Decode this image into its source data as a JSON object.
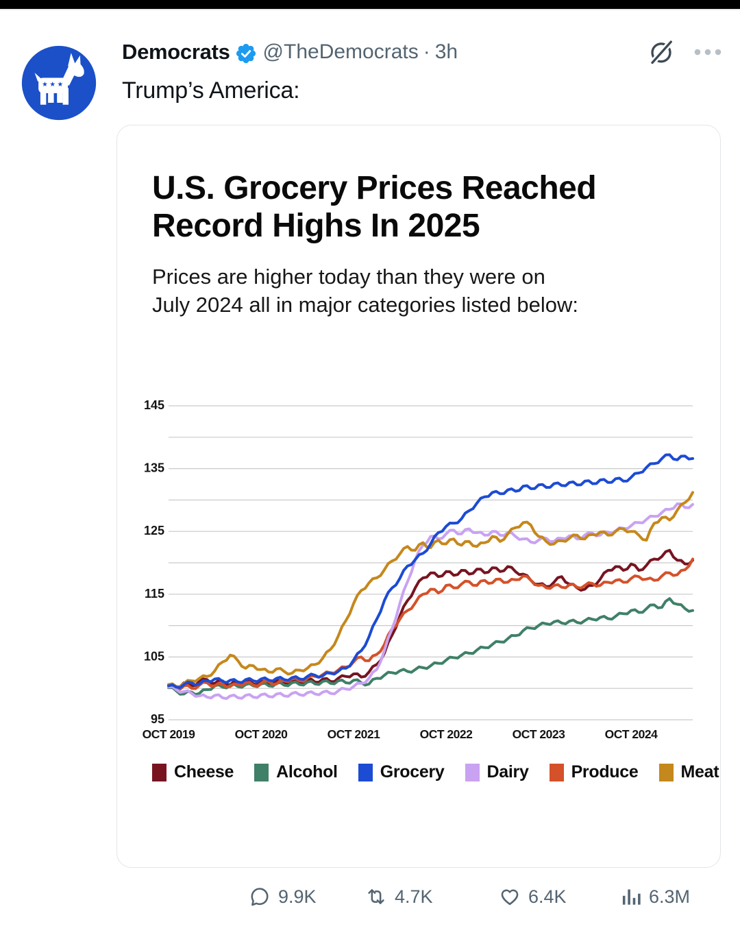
{
  "tweet": {
    "display_name": "Democrats",
    "handle": "@TheDemocrats",
    "separator": "·",
    "timestamp": "3h",
    "body_text": "Trump’s America:",
    "avatar_color": "#1b50c8",
    "verified_color": "#1d9bf0"
  },
  "card": {
    "title_line1": "U.S. Grocery Prices Reached",
    "title_line2": "Record Highs In 2025",
    "subtitle_line1": "Prices are higher today than they were on",
    "subtitle_line2": "July 2024 all in major categories listed below:"
  },
  "chart_data": {
    "type": "line",
    "title": "U.S. Grocery Prices Reached Record Highs In 2025",
    "subtitle": "Prices are higher today than they were on July 2024 all in major categories listed below:",
    "x_start": "Oct 2019",
    "x_end": "Jun 2025",
    "frequency": "monthly",
    "x_tick_labels": [
      "OCT 2019",
      "OCT 2020",
      "OCT 2021",
      "OCT 2022",
      "OCT 2023",
      "OCT 2024"
    ],
    "x_tick_indices": [
      0,
      12,
      24,
      36,
      48,
      60
    ],
    "y_ticks": [
      95,
      105,
      115,
      125,
      135,
      145
    ],
    "ylim": [
      95,
      145
    ],
    "grid_step": 5,
    "grid_color": "#c9c9c9",
    "axis_label_color": "#141414",
    "legend_position": "bottom",
    "series": [
      {
        "name": "Cheese",
        "color": "#771420",
        "values": [
          100.6,
          100.2,
          100.9,
          100.4,
          101.1,
          101.4,
          100.8,
          101.2,
          100.6,
          101.0,
          101.3,
          100.7,
          101.1,
          100.6,
          101.2,
          100.8,
          101.3,
          100.9,
          101.4,
          101.0,
          101.5,
          101.1,
          101.6,
          101.9,
          102.3,
          101.8,
          102.6,
          103.8,
          105.6,
          108.5,
          111.5,
          114.0,
          116.0,
          117.6,
          118.4,
          117.8,
          118.6,
          118.0,
          118.8,
          118.2,
          119.0,
          118.4,
          119.2,
          118.6,
          119.4,
          118.6,
          118.2,
          117.2,
          116.6,
          116.2,
          116.9,
          117.8,
          116.6,
          116.0,
          115.8,
          116.4,
          117.4,
          118.8,
          119.4,
          118.8,
          119.8,
          118.8,
          119.6,
          120.6,
          121.0,
          122.0,
          120.4,
          119.8,
          120.4
        ]
      },
      {
        "name": "Alcohol",
        "color": "#3f8068",
        "values": [
          100.1,
          99.6,
          99.1,
          99.4,
          99.2,
          99.8,
          100.4,
          100.2,
          100.5,
          100.3,
          100.6,
          100.4,
          100.7,
          100.4,
          100.8,
          100.5,
          100.9,
          100.6,
          101.0,
          100.7,
          101.1,
          100.8,
          101.2,
          100.9,
          101.3,
          100.9,
          100.7,
          101.6,
          102.1,
          102.5,
          102.8,
          102.7,
          103.0,
          103.3,
          103.6,
          104.0,
          104.5,
          104.9,
          105.3,
          105.6,
          106.1,
          106.5,
          107.0,
          107.4,
          107.9,
          108.4,
          109.2,
          109.6,
          110.0,
          110.3,
          110.6,
          110.4,
          110.7,
          110.5,
          110.8,
          111.0,
          111.3,
          111.1,
          111.5,
          111.9,
          112.4,
          112.1,
          112.7,
          113.3,
          112.9,
          114.3,
          113.4,
          112.7,
          112.4
        ]
      },
      {
        "name": "Grocery",
        "color": "#1c4bd4",
        "values": [
          100.4,
          100.2,
          100.6,
          100.9,
          100.7,
          101.2,
          101.5,
          101.1,
          101.3,
          101.0,
          101.4,
          101.2,
          101.5,
          101.3,
          101.6,
          101.4,
          101.7,
          101.5,
          101.9,
          102.1,
          102.0,
          102.4,
          102.7,
          103.2,
          104.5,
          106.0,
          108.2,
          111.0,
          114.0,
          116.0,
          117.5,
          119.5,
          120.5,
          121.5,
          123.0,
          124.8,
          125.8,
          126.3,
          127.0,
          128.3,
          129.5,
          130.5,
          131.2,
          131.0,
          131.6,
          131.4,
          132.2,
          131.8,
          132.4,
          132.0,
          132.6,
          132.3,
          132.8,
          132.4,
          133.0,
          132.6,
          133.2,
          132.8,
          133.4,
          133.0,
          133.6,
          134.3,
          135.2,
          135.8,
          136.6,
          137.2,
          136.4,
          137.0,
          136.6
        ]
      },
      {
        "name": "Dairy",
        "color": "#c9a2f2",
        "values": [
          100.2,
          99.8,
          99.5,
          99.2,
          98.8,
          98.6,
          98.9,
          98.5,
          98.8,
          98.5,
          98.9,
          98.6,
          99.0,
          98.7,
          99.1,
          98.8,
          99.2,
          99.0,
          99.3,
          99.1,
          99.4,
          99.2,
          99.6,
          99.9,
          100.3,
          100.8,
          101.6,
          103.0,
          106.0,
          109.5,
          113.5,
          117.0,
          120.5,
          122.8,
          124.2,
          123.8,
          124.6,
          125.2,
          124.6,
          125.4,
          124.8,
          124.4,
          125.0,
          124.4,
          124.8,
          124.2,
          123.8,
          123.3,
          123.6,
          123.9,
          123.4,
          123.9,
          124.3,
          123.8,
          124.4,
          124.7,
          124.4,
          124.9,
          125.1,
          125.5,
          125.9,
          126.4,
          126.9,
          127.4,
          128.0,
          128.5,
          129.4,
          128.8,
          129.3
        ]
      },
      {
        "name": "Produce",
        "color": "#d4512a",
        "values": [
          100.3,
          99.9,
          100.4,
          100.0,
          100.5,
          100.9,
          100.4,
          100.7,
          100.3,
          100.6,
          100.9,
          100.5,
          100.8,
          101.1,
          100.7,
          101.2,
          101.5,
          101.2,
          101.6,
          101.9,
          102.2,
          102.5,
          102.9,
          103.4,
          104.2,
          105.0,
          104.4,
          105.4,
          107.0,
          109.5,
          111.0,
          112.4,
          113.6,
          115.0,
          115.8,
          115.2,
          116.4,
          116.0,
          116.6,
          117.0,
          116.4,
          117.2,
          116.8,
          117.4,
          116.9,
          117.3,
          117.9,
          117.2,
          116.4,
          116.0,
          116.4,
          116.1,
          116.5,
          116.1,
          116.4,
          116.7,
          116.4,
          116.9,
          117.2,
          116.9,
          117.5,
          117.8,
          117.4,
          117.2,
          117.9,
          118.4,
          118.1,
          118.9,
          120.6
        ]
      },
      {
        "name": "Meat",
        "color": "#c5881c",
        "values": [
          100.6,
          100.3,
          100.8,
          101.2,
          101.6,
          101.9,
          102.8,
          104.2,
          105.3,
          104.4,
          103.2,
          103.6,
          103.0,
          102.6,
          103.1,
          102.7,
          102.4,
          102.9,
          103.2,
          103.8,
          104.8,
          106.2,
          108.3,
          110.8,
          113.5,
          115.6,
          116.8,
          117.6,
          118.9,
          120.3,
          121.4,
          122.6,
          122.0,
          123.2,
          122.4,
          123.6,
          123.0,
          123.8,
          122.8,
          123.4,
          122.6,
          123.2,
          124.2,
          123.4,
          124.6,
          125.6,
          126.4,
          126.0,
          124.2,
          123.4,
          123.0,
          123.5,
          123.9,
          124.4,
          123.8,
          124.5,
          124.9,
          124.4,
          125.0,
          125.4,
          125.0,
          124.4,
          123.6,
          126.3,
          127.2,
          126.8,
          128.4,
          129.6,
          131.2
        ]
      }
    ]
  },
  "engagement": {
    "replies": "9.9K",
    "reposts": "4.7K",
    "likes": "6.4K",
    "views": "6.3M"
  }
}
